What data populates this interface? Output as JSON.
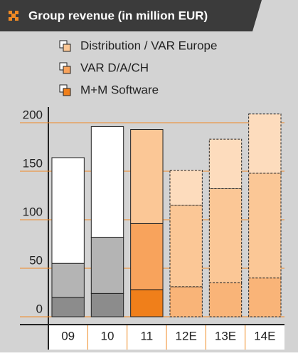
{
  "chart_data": {
    "type": "stacked_bar",
    "title": "Group revenue (in million EUR)",
    "categories": [
      "09",
      "10",
      "11",
      "12E",
      "13E",
      "14E"
    ],
    "series": [
      {
        "name": "M+M Software",
        "color": "#f07f1a",
        "colors": [
          "#8c8c8c",
          "#8c8c8c",
          "#f07f1a",
          "#f9b478",
          "#f9b478",
          "#f9b478"
        ],
        "values": [
          20,
          24,
          28,
          31,
          35,
          40
        ]
      },
      {
        "name": "VAR D/A/CH",
        "color": "#f8a35c",
        "colors": [
          "#b4b4b4",
          "#b4b4b4",
          "#f8a35c",
          "#fbc796",
          "#fbc796",
          "#fbc796"
        ],
        "values": [
          35,
          58,
          68,
          84,
          97,
          108
        ]
      },
      {
        "name": "Distribution / VAR Europe",
        "color": "#fbc796",
        "colors": [
          "#ffffff",
          "#ffffff",
          "#fbc796",
          "#fddcbd",
          "#fddcbd",
          "#fddcbd"
        ],
        "values": [
          109,
          114,
          97,
          36,
          51,
          61
        ]
      }
    ],
    "dashed": [
      false,
      false,
      false,
      true,
      true,
      true
    ],
    "ylim": [
      0,
      225
    ],
    "yticks": [
      0,
      50,
      100,
      150,
      200
    ],
    "grid": true
  }
}
